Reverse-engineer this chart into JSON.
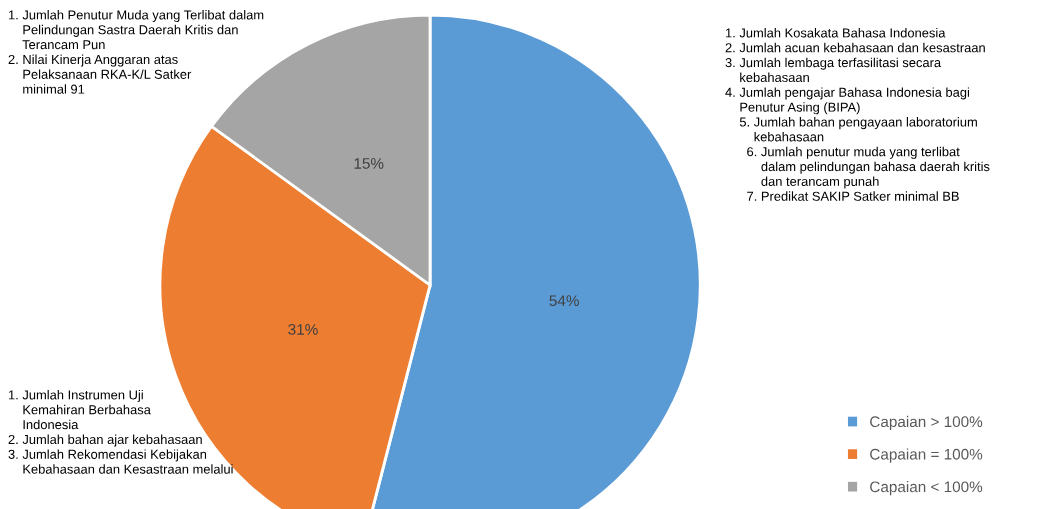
{
  "chart_data": {
    "type": "pie",
    "categories": [
      "Capaian > 100%",
      "Capaian = 100%",
      "Capaian < 100%"
    ],
    "values": [
      54,
      31,
      15
    ],
    "value_labels": [
      "54%",
      "31%",
      "15%"
    ],
    "colors": [
      "#5b9bd5",
      "#ed7d31",
      "#a5a5a5"
    ],
    "legend": "bottom right",
    "annotations": [
      "1. Jumlah Kosakata Bahasa Indonesia\n2. Jumlah acuan kebahasaan dan kesastraan\n3. Jumlah lembaga terfasilitasi secara\n    kebahasaan\n4. Jumlah pengajar Bahasa Indonesia bagi\n    Penutur Asing (BIPA)\n    5. Jumlah bahan pengayaan laboratorium\n        kebahasaan\n      6. Jumlah penutur muda yang terlibat\n          dalam pelindungan bahasa daerah kritis\n          dan terancam punah\n      7. Predikat SAKIP Satker minimal BB",
      "1. Jumlah Instrumen Uji\n    Kemahiran Berbahasa\n    Indonesia\n2. Jumlah bahan ajar kebahasaan\n3. Jumlah Rekomendasi Kebijakan\n    Kebahasaan dan Kesastraan melalui",
      "1. Jumlah Penutur Muda yang Terlibat dalam\n    Pelindungan Sastra Daerah Kritis dan\n    Terancam Pun\n2. Nilai Kinerja Anggaran atas\n    Pelaksanaan RKA-K/L Satker\n    minimal 91"
    ]
  }
}
